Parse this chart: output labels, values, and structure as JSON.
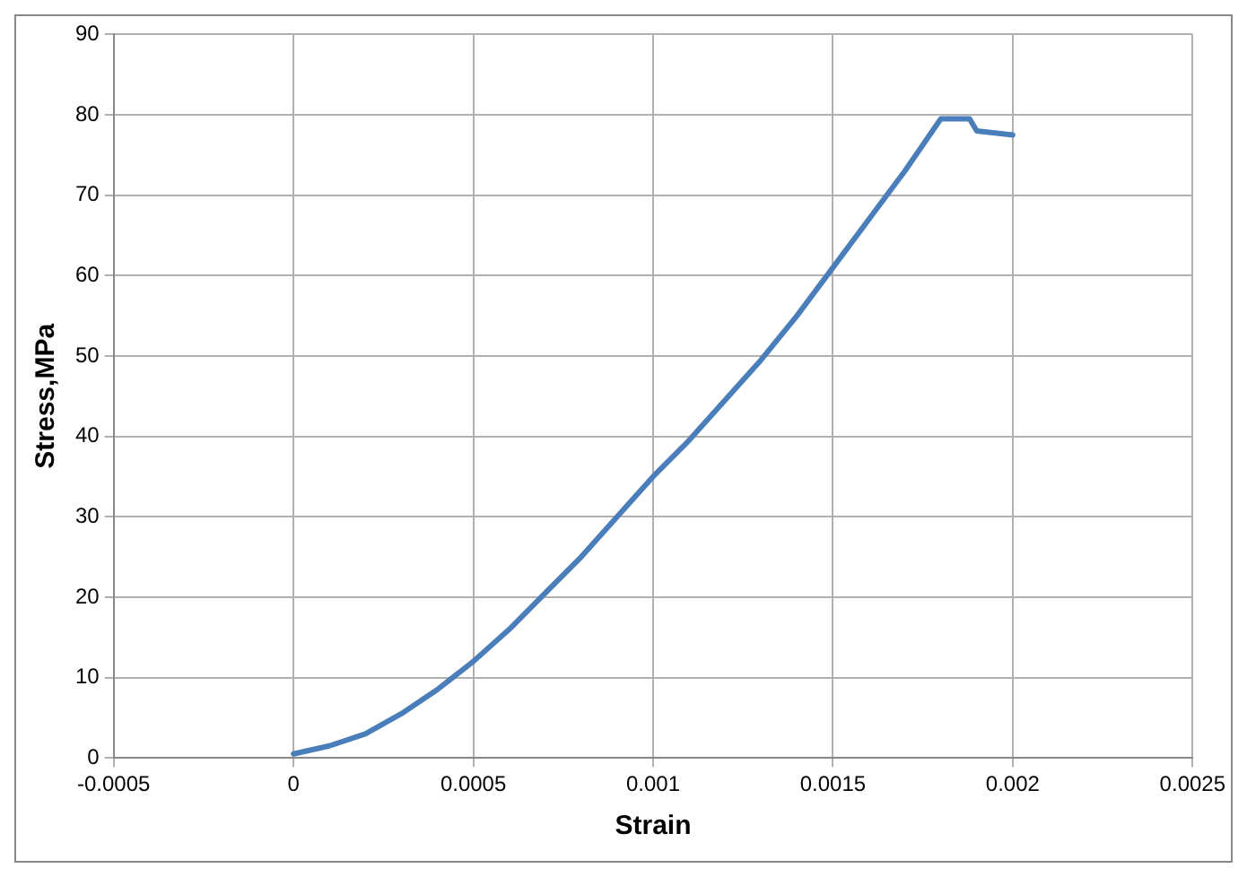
{
  "chart_data": {
    "type": "line",
    "xlabel": "Strain",
    "ylabel": "Stress,MPa",
    "xlim": [
      -0.0005,
      0.0025
    ],
    "xticks": [
      -0.0005,
      0,
      0.0005,
      0.001,
      0.0015,
      0.002,
      0.0025
    ],
    "ylim": [
      0,
      90
    ],
    "yticks": [
      0,
      10,
      20,
      30,
      40,
      50,
      60,
      70,
      80,
      90
    ],
    "grid": true,
    "legend": false,
    "marker": "none",
    "line_style": "solid",
    "series": [
      {
        "color": "#4a7ebb",
        "x": [
          0,
          0.0001,
          0.0002,
          0.0003,
          0.0004,
          0.0005,
          0.0006,
          0.0007,
          0.0008,
          0.0009,
          0.001,
          0.0011,
          0.0012,
          0.0013,
          0.0014,
          0.0015,
          0.0016,
          0.0017,
          0.0018,
          0.00188,
          0.0019,
          0.002
        ],
        "values": [
          0.5,
          1.5,
          3,
          5.5,
          8.5,
          12,
          16,
          20.5,
          25,
          30,
          35,
          39.5,
          44.5,
          49.5,
          55,
          61,
          67,
          73,
          79.5,
          79.5,
          78,
          77.5
        ]
      }
    ]
  }
}
